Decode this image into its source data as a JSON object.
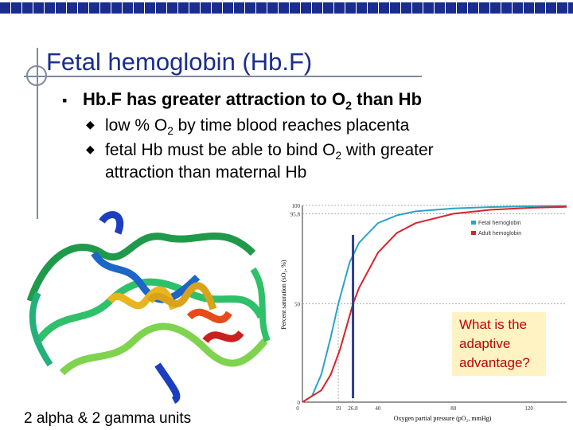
{
  "slide": {
    "title": "Fetal hemoglobin (Hb.F)",
    "bullet_main": {
      "pre": "Hb.F has greater attraction to O",
      "sub": "2",
      "post": " than Hb"
    },
    "sub_bullets": [
      {
        "pre": "low % O",
        "sub": "2",
        "post": " by time blood reaches placenta"
      },
      {
        "pre": "fetal Hb must be able to bind O",
        "sub": "2",
        "post": " with greater"
      },
      {
        "cont": "attraction than maternal Hb"
      }
    ],
    "caption": "2 alpha & 2 gamma units",
    "callout": "What is the adaptive advantage?",
    "colors": {
      "title": "#1a2d8c",
      "fetal": "#2aa3c8",
      "adult": "#d8222a",
      "callout_text": "#c00000",
      "callout_bg": "#fff3c4"
    }
  },
  "chart_data": {
    "type": "line",
    "xlabel": "Oxygen partial pressure (pO₂, mmHg)",
    "ylabel": "Percent saturation (sO₂, %)",
    "xlim": [
      0,
      140
    ],
    "ylim": [
      0,
      100
    ],
    "x_ticks": [
      "0",
      "19",
      "26.8",
      "40",
      "80",
      "120"
    ],
    "y_ticks": [
      "0",
      "50",
      "95.8",
      "100"
    ],
    "legend_position": "top-right",
    "series": [
      {
        "name": "Fetal hemoglobin",
        "color": "#2aa3c8",
        "p50": 19,
        "x": [
          0,
          5,
          10,
          15,
          19,
          25,
          30,
          40,
          50,
          60,
          80,
          100,
          120,
          140
        ],
        "y": [
          0,
          3,
          14,
          33,
          50,
          71,
          81,
          91,
          95,
          97,
          98.5,
          99.2,
          99.6,
          99.8
        ]
      },
      {
        "name": "Adult hemoglobin",
        "color": "#d8222a",
        "p50": 26.8,
        "x": [
          0,
          10,
          15,
          20,
          26.8,
          30,
          40,
          50,
          60,
          80,
          100,
          120,
          140
        ],
        "y": [
          0,
          6,
          14,
          27,
          50,
          58,
          76,
          86,
          91,
          95.8,
          97.8,
          98.8,
          99.3
        ]
      }
    ],
    "annotation_line_x": 26.8
  }
}
